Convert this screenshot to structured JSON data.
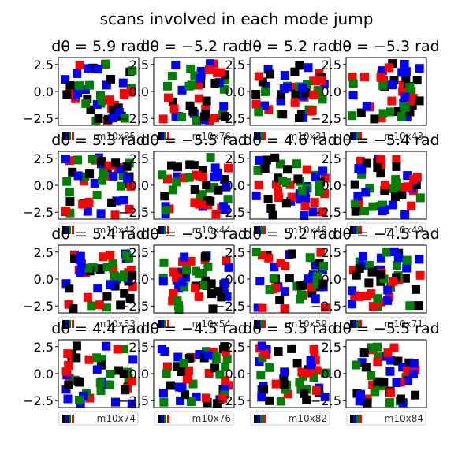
{
  "figure": {
    "suptitle": "scans involved in each mode jump"
  },
  "chart_data": {
    "type": "scatter",
    "grid_rows": 4,
    "grid_cols": 4,
    "ylim": [
      -3.14,
      3.14
    ],
    "yticks": [
      -2.5,
      0.0,
      2.5
    ],
    "ytick_labels": [
      "−2.5",
      "0.0",
      "2.5"
    ],
    "series_colors": {
      "red": "#ff0000",
      "green": "#008000",
      "blue": "#0000ff",
      "black": "#000000"
    },
    "panels": [
      {
        "title": "dθ = 5.9 rad",
        "legend_text": "m10x85"
      },
      {
        "title": "dθ = −5.2 rad",
        "legend_text": "m10x76"
      },
      {
        "title": "dθ = 5.2 rad",
        "legend_text": "m10x31"
      },
      {
        "title": "dθ = −5.3 rad",
        "legend_text": "m10x43"
      },
      {
        "title": "dθ = 5.3 rad",
        "legend_text": "m10x42"
      },
      {
        "title": "dθ = −5.5 rad",
        "legend_text": "m10x44"
      },
      {
        "title": "dθ = 4.6 rad",
        "legend_text": "m10x48"
      },
      {
        "title": "dθ = −5.4 rad",
        "legend_text": "m10x49"
      },
      {
        "title": "dθ = 5.4 rad",
        "legend_text": "m10x53"
      },
      {
        "title": "dθ = −5.3 rad",
        "legend_text": "m10x54"
      },
      {
        "title": "dθ = 5.2 rad",
        "legend_text": "m10x59"
      },
      {
        "title": "dθ = −4.5 rad",
        "legend_text": "m10x71"
      },
      {
        "title": "dθ = 4.4 rad",
        "legend_text": "m10x74"
      },
      {
        "title": "dθ = −4.5 rad",
        "legend_text": "m10x76"
      },
      {
        "title": "dθ = 5.5 rad",
        "legend_text": "m10x82"
      },
      {
        "title": "dθ = −5.5 rad",
        "legend_text": "m10x84"
      }
    ]
  }
}
